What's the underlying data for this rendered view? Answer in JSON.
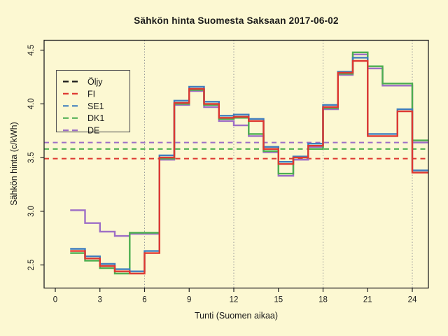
{
  "title": "Sähkön hinta Suomesta Saksaan 2017-06-02",
  "axes": {
    "x_label": "Tunti (Suomen aikaa)",
    "y_label": "Sähkön hinta (c/kWh)",
    "x_ticks": [
      "0",
      "3",
      "6",
      "9",
      "12",
      "15",
      "18",
      "21",
      "24"
    ],
    "y_ticks": [
      "2.5",
      "3.0",
      "3.5",
      "4.0",
      "4.5"
    ]
  },
  "colors": {
    "background": "#FCF8D2",
    "frame": "#222222",
    "grid": "#999999",
    "text": "#1a1a1a",
    "oljy": "#1a1a1a",
    "fi": "#DE3831",
    "se1": "#3F7EBE",
    "dk1": "#4DAE50",
    "de": "#9D6EC6"
  },
  "legend": [
    {
      "label": "Öljy",
      "color": "#1a1a1a"
    },
    {
      "label": "FI",
      "color": "#DE3831"
    },
    {
      "label": "SE1",
      "color": "#3F7EBE"
    },
    {
      "label": "DK1",
      "color": "#4DAE50"
    },
    {
      "label": "DE",
      "color": "#9D6EC6"
    }
  ],
  "chart_data": {
    "type": "line",
    "subtype": "step-post",
    "title": "Sähkön hinta Suomesta Saksaan 2017-06-02",
    "xlabel": "Tunti (Suomen aikaa)",
    "ylabel": "Sähkön hinta (c/kWh)",
    "x_hours": [
      1,
      2,
      3,
      4,
      5,
      6,
      7,
      8,
      9,
      10,
      11,
      12,
      13,
      14,
      15,
      16,
      17,
      18,
      19,
      20,
      21,
      22,
      23,
      24
    ],
    "series": [
      {
        "name": "FI",
        "color": "#DE3831",
        "values": [
          2.63,
          2.56,
          2.49,
          2.44,
          2.42,
          2.61,
          3.5,
          4.01,
          4.14,
          4.0,
          3.87,
          3.88,
          3.84,
          3.58,
          3.44,
          3.5,
          3.61,
          3.97,
          4.29,
          4.4,
          3.7,
          3.7,
          3.93,
          3.36
        ]
      },
      {
        "name": "SE1",
        "color": "#3F7EBE",
        "values": [
          2.65,
          2.58,
          2.51,
          2.46,
          2.44,
          2.63,
          3.52,
          4.03,
          4.16,
          4.02,
          3.89,
          3.9,
          3.86,
          3.6,
          3.46,
          3.51,
          3.63,
          3.99,
          4.3,
          4.43,
          3.72,
          3.72,
          3.95,
          3.38
        ]
      },
      {
        "name": "DK1",
        "color": "#4DAE50",
        "values": [
          2.61,
          2.54,
          2.47,
          2.42,
          2.8,
          2.8,
          3.49,
          4.0,
          4.13,
          3.99,
          3.86,
          3.87,
          3.72,
          3.56,
          3.35,
          3.5,
          3.58,
          3.96,
          4.28,
          4.48,
          4.35,
          4.19,
          4.19,
          3.66
        ]
      },
      {
        "name": "DE",
        "color": "#9D6EC6",
        "values": [
          3.01,
          2.89,
          2.81,
          2.77,
          2.79,
          2.79,
          3.48,
          3.99,
          4.12,
          3.97,
          3.84,
          3.8,
          3.7,
          3.55,
          3.33,
          3.48,
          3.6,
          3.95,
          4.27,
          4.46,
          4.33,
          4.17,
          4.17,
          3.64
        ]
      }
    ],
    "reference_lines": [
      {
        "name": "FI-dashed",
        "value": 3.49,
        "color": "#DE3831"
      },
      {
        "name": "DK1-dashed",
        "value": 3.58,
        "color": "#4DAE50"
      },
      {
        "name": "DE-dashed",
        "value": 3.64,
        "color": "#9D6EC6"
      }
    ],
    "grid_hours": [
      6,
      12,
      18,
      24
    ],
    "xlim": [
      -0.76,
      25.08
    ],
    "ylim": [
      2.28,
      4.59
    ],
    "legend_position": "top-left",
    "grid": "vertical-dotted-only"
  }
}
